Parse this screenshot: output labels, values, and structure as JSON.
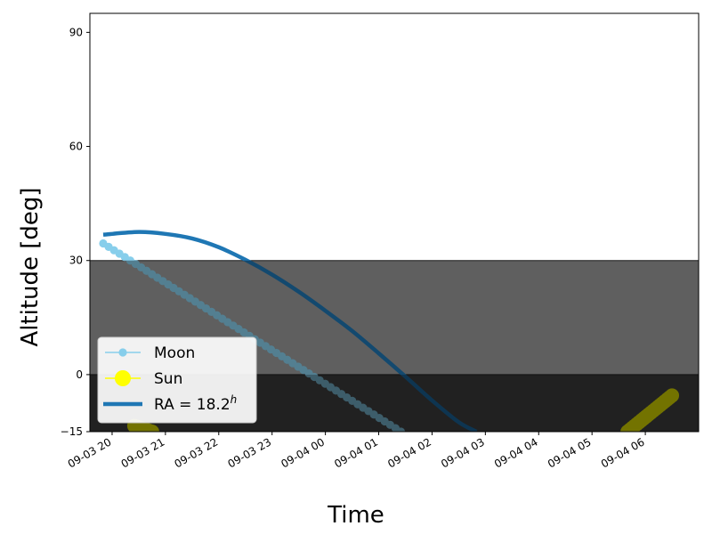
{
  "chart_data": {
    "type": "line",
    "xlabel": "Time",
    "ylabel": "Altitude [deg]",
    "xlim": [
      "2024-09-03 19:35",
      "2024-09-04 07:00"
    ],
    "ylim": [
      -15,
      95
    ],
    "y_ticks": [
      -15,
      0,
      30,
      60,
      90
    ],
    "x_ticks": [
      {
        "t": "2024-09-03 20:00",
        "label": "09-03 20"
      },
      {
        "t": "2024-09-03 21:00",
        "label": "09-03 21"
      },
      {
        "t": "2024-09-03 22:00",
        "label": "09-03 22"
      },
      {
        "t": "2024-09-03 23:00",
        "label": "09-03 23"
      },
      {
        "t": "2024-09-04 00:00",
        "label": "09-04 00"
      },
      {
        "t": "2024-09-04 01:00",
        "label": "09-04 01"
      },
      {
        "t": "2024-09-04 02:00",
        "label": "09-04 02"
      },
      {
        "t": "2024-09-04 03:00",
        "label": "09-04 03"
      },
      {
        "t": "2024-09-04 04:00",
        "label": "09-04 04"
      },
      {
        "t": "2024-09-04 05:00",
        "label": "09-04 05"
      },
      {
        "t": "2024-09-04 06:00",
        "label": "09-04 06"
      }
    ],
    "bands": [
      {
        "from": 0,
        "to": 30,
        "color": "#999999"
      },
      {
        "from": -15,
        "to": 0,
        "color": "#4a4a4a"
      }
    ],
    "grid": false,
    "legend_position": "lower-left",
    "series": [
      {
        "name": "Moon",
        "style": "line-markers",
        "color": "#87ceeb",
        "x": [
          "2024-09-03 19:50",
          "2024-09-04 01:25"
        ],
        "y": [
          34.5,
          -15
        ],
        "n_points": 56
      },
      {
        "name": "Sun",
        "style": "markers",
        "color": "#ffff00",
        "segments": [
          {
            "x": [
              "2024-09-03 20:25",
              "2024-09-03 20:45"
            ],
            "y": [
              -13.5,
              -15
            ]
          },
          {
            "x": [
              "2024-09-04 05:40",
              "2024-09-04 06:30"
            ],
            "y": [
              -15,
              -5.5
            ]
          }
        ]
      },
      {
        "name": "RA = 18.2",
        "name_superscript": "h",
        "style": "line",
        "color": "#1f77b4",
        "x": [
          "2024-09-03 19:50",
          "2024-09-03 20:30",
          "2024-09-03 21:00",
          "2024-09-03 21:30",
          "2024-09-03 22:00",
          "2024-09-03 22:30",
          "2024-09-03 23:00",
          "2024-09-03 23:30",
          "2024-09-04 00:00",
          "2024-09-04 00:30",
          "2024-09-04 01:00",
          "2024-09-04 01:30",
          "2024-09-04 02:00",
          "2024-09-04 02:30",
          "2024-09-04 02:50"
        ],
        "y": [
          36.8,
          37.5,
          37.0,
          35.8,
          33.5,
          30.2,
          26.3,
          21.8,
          16.8,
          11.5,
          5.6,
          -0.5,
          -6.8,
          -12.5,
          -15
        ]
      }
    ]
  }
}
